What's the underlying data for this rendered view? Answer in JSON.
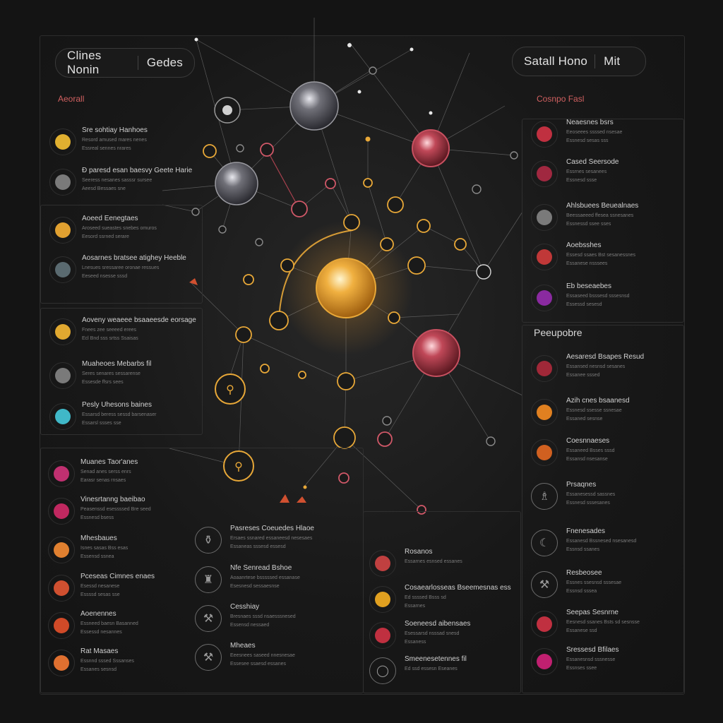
{
  "header": {
    "left_pill": {
      "main": "Clines Nonin",
      "side": "Gedes"
    },
    "right_pill": {
      "main": "Satall Hono",
      "side": "Mit"
    }
  },
  "left": {
    "section_title": "Aeorall",
    "groups": [
      {
        "items": [
          {
            "title": "Sre sohtiay Hanhoes",
            "l1": "Resord amused mares nenes",
            "l2": "Essreal sennes nrares",
            "icon_color": "#e0b030"
          },
          {
            "title": "Ð paresd esan baesvy Geete Harie",
            "l1": "Seeress nesanes sasssr sursee",
            "l2": "Aeesd Bessaes sne",
            "icon_color": "#7a7a7a"
          }
        ]
      },
      {
        "items": [
          {
            "title": "Aoeed Eenegtaes",
            "l1": "Aroseed sueastes snebes omuros",
            "l2": "Eesord ssrned serare",
            "icon_color": "#e0a030"
          },
          {
            "title": "Aosarnes bratsee atighey Heeble",
            "l1": "Lnesues sressaree oronae ressues",
            "l2": "Eeseed nsesse sssd",
            "icon_color": "#5a6a70"
          }
        ]
      },
      {
        "items": [
          {
            "title": "Aoveny weaeee bsaaeesde eorsage",
            "l1": "Fnees zee seeeed erees",
            "l2": "Ecl Bnd sss srtss Ssaisas",
            "icon_color": "#e0a830"
          },
          {
            "title": "Muaheoes Mebarbs fil",
            "l1": "Seres senares sessarense",
            "l2": "Essesde ffsrs sees",
            "icon_color": "#7a7a7a"
          },
          {
            "title": "Pesly Uhesons baines",
            "l1": "Essarsd beress sessd barsenaser",
            "l2": "Essarsl ssses sse",
            "icon_color": "#40b8c8"
          }
        ]
      },
      {
        "items": [
          {
            "title": "Muanes Taor'anes",
            "l1": "Senad anes serss enrs",
            "l2": "Earasr senas rnsaes",
            "icon_color": "#c03070"
          },
          {
            "title": "Vinesrtanng baeibao",
            "l1": "Peasenssd esessssed Bre seed",
            "l2": "Essnesd bsess",
            "icon_color": "#c02860"
          },
          {
            "title": "Mhesbaues",
            "l1": "Isnes sasas Bss esas",
            "l2": "Essensd ssnea",
            "icon_color": "#e08030"
          },
          {
            "title": "Pceseas Cimnes enaes",
            "l1": "Esessd nesanese",
            "l2": "Essssd sesas sse",
            "icon_color": "#d05030"
          },
          {
            "title": "Aoenennes",
            "l1": "Essneed baesn Basanned",
            "l2": "Essessd nesannes",
            "icon_color": "#d04a28"
          },
          {
            "title": "Rat Masaes",
            "l1": "Essnnd sssed Sssanses",
            "l2": "Essanes sesnsd",
            "icon_color": "#e07030"
          }
        ]
      }
    ]
  },
  "middle": {
    "items": [
      {
        "title": "Pasreses Coeuedes Hlaoe",
        "l1": "Ersaes ssnared essaneesd nesesaes",
        "l2": "Essaneas sssesd essesd",
        "icon": "⚱"
      },
      {
        "title": "Nfe Senread Bshoe",
        "l1": "Aoaanrtese bsssssed essanase",
        "l2": "Esesnesd sessaesnse",
        "icon": "♜"
      },
      {
        "title": "Cesshiay",
        "l1": "Bresnaes sssd nsaesssnesed",
        "l2": "Essensd nessaed",
        "icon": "⚒"
      },
      {
        "title": "Mheaes",
        "l1": "Eeesnees saseed nnesnesae",
        "l2": "Essesee ssaesd essanes",
        "icon": "⚒"
      }
    ]
  },
  "center_bottom": {
    "items": [
      {
        "title": "Rosanos",
        "l1": "Essarnes esnsed essanes",
        "l2": "",
        "icon_color": "#c04040"
      },
      {
        "title": "Cosaearlosseas Bseemesnas ess",
        "l1": "Ed ssssed Bsss sd",
        "l2": "Essarnes",
        "icon_color": "#e0a020"
      },
      {
        "title": "Soeneesd aibensaes",
        "l1": "Esessarsd nsssad snesd",
        "l2": "Essaness",
        "icon_color": "#c03040"
      },
      {
        "title": "Smeenesetennes fil",
        "l1": "Ed ssd essesn Eseanes",
        "l2": "",
        "icon_color": ""
      }
    ]
  },
  "right": {
    "section_title": "Cosnpo Fasl",
    "section2_title": "Peeupobre",
    "groups": [
      {
        "items": [
          {
            "title": "Neaesnes bsrs",
            "l1": "Eeoseees ssssed nsesae",
            "l2": "Essnesd sesas sss",
            "icon_color": "#c03040"
          },
          {
            "title": "Cased Seersode",
            "l1": "Essrnes sesanees",
            "l2": "Essnesd ssse",
            "icon_color": "#a02840"
          },
          {
            "title": "Ahlsbuees Beuealnaes",
            "l1": "Beessaeeed ffesea ssnesanes",
            "l2": "Essnessd ssee sses",
            "icon_color": "#7a7a7a"
          },
          {
            "title": "Aoebsshes",
            "l1": "Essesd ssaes Bst sesanessnes",
            "l2": "Essanese nsssees",
            "icon_color": "#c03838"
          },
          {
            "title": "Eb beseaebes",
            "l1": "Essaseed bsssesd sssesnsd",
            "l2": "Essessd sesesd",
            "icon_color": "#8a2aa0"
          }
        ]
      },
      {
        "items": [
          {
            "title": "Aesaresd Bsapes Resud",
            "l1": "Essansed nesnsd sesanes",
            "l2": "Essanee sssed",
            "icon_color": "#a02838"
          },
          {
            "title": "Azih cnes bsaanesd",
            "l1": "Essnesd ssesse ssnesae",
            "l2": "Essaned sesnse",
            "icon_color": "#e08020"
          },
          {
            "title": "Coesnnaeses",
            "l1": "Essaneed Bsses sssd",
            "l2": "Essansd nsesanse",
            "icon_color": "#d06020"
          },
          {
            "title": "Prsaqnes",
            "l1": "Essanesessd sassnes",
            "l2": "Essnesd sssesanes",
            "icon_color": "#7a7a7a"
          },
          {
            "title": "Fnenesades",
            "l1": "Essanesd Bssnesed nsesanesd",
            "l2": "Essnsd ssanes",
            "icon_color": "#7a7a7a"
          },
          {
            "title": "Resbeosee",
            "l1": "Essnes ssesnsd sssesae",
            "l2": "Essnsd sssea",
            "icon_color": "#7a7a7a"
          },
          {
            "title": "Seepas Sesnrne",
            "l1": "Eesnesd ssanes Bsts sd sesnsse",
            "l2": "Essanese ssd",
            "icon_color": "#c03040"
          },
          {
            "title": "Sressesd Bfilaes",
            "l1": "Essanesnsd sssnesse",
            "l2": "Essnses ssee",
            "icon_color": "#c02070"
          }
        ]
      }
    ]
  },
  "colors": {
    "accent": "#e8a838",
    "node_red": "#d04858",
    "line": "#6a6a6a"
  }
}
